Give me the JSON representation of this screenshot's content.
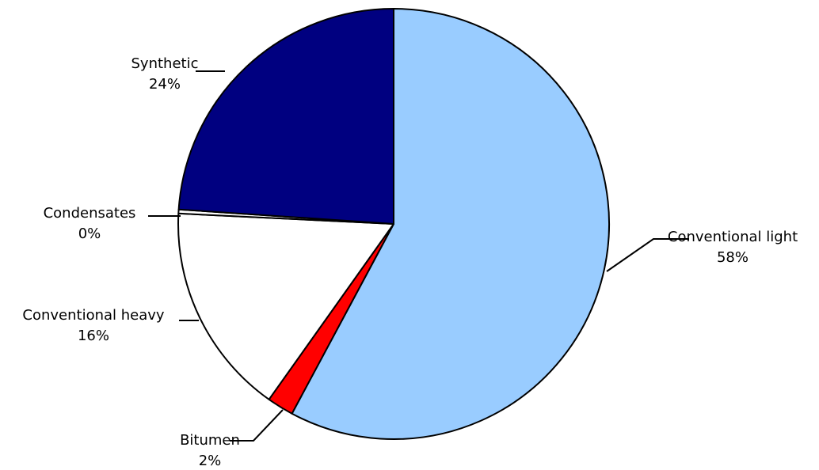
{
  "chart_data": {
    "type": "pie",
    "title": "",
    "legend": "none",
    "slices": [
      {
        "label": "Conventional light",
        "value": 58,
        "value_label": "58%",
        "color": "#99CCFF"
      },
      {
        "label": "Bitumen",
        "value": 2,
        "value_label": "2%",
        "color": "#FF0000"
      },
      {
        "label": "Conventional heavy",
        "value": 16,
        "value_label": "16%",
        "color": "#FFFFFF"
      },
      {
        "label": "Condensates",
        "value": 0.3,
        "value_label": "0%",
        "color": "#FFFFFF"
      },
      {
        "label": "Synthetic",
        "value": 24,
        "value_label": "24%",
        "color": "#000080"
      }
    ]
  }
}
